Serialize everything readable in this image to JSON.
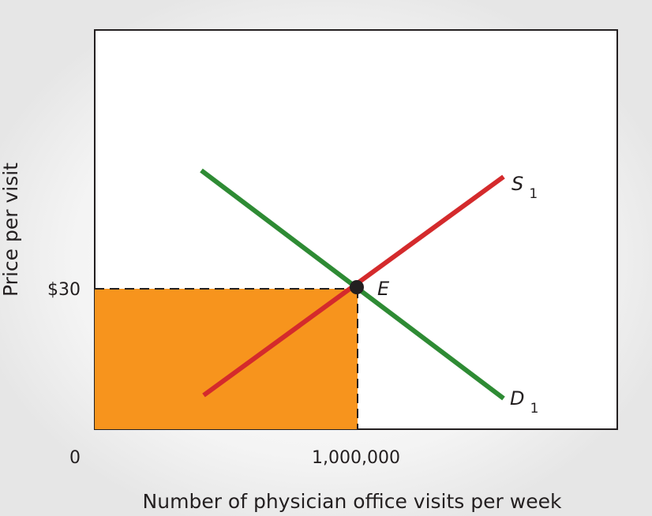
{
  "chart_data": {
    "type": "line",
    "xlabel": "Number of physician office visits per week",
    "ylabel": "Price per visit",
    "origin_label": "0",
    "x_tick_label": "1,000,000",
    "y_tick_label": "$30",
    "equilibrium": {
      "label": "E",
      "quantity": 1000000,
      "price": 30
    },
    "series": [
      {
        "name": "S",
        "subscript": "1",
        "color": "#d42a2c",
        "slope": "upward"
      },
      {
        "name": "D",
        "subscript": "1",
        "color": "#2e8b34",
        "slope": "downward"
      }
    ],
    "shaded_area_color": "#f7941d",
    "background_color": "#eeeeee",
    "plot_background_color": "#ffffff"
  }
}
